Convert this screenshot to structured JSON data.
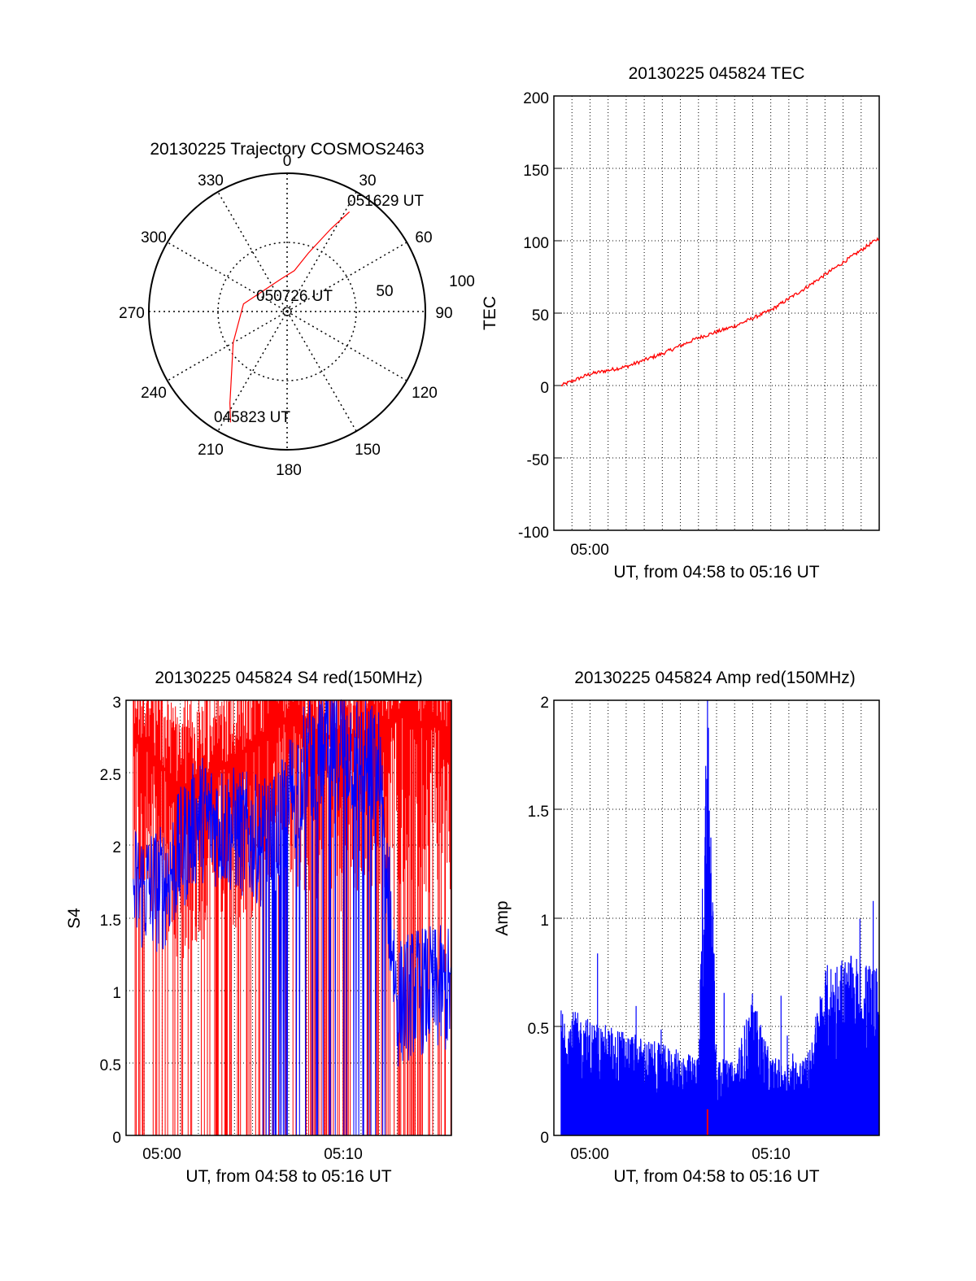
{
  "chart_data": [
    {
      "type": "polar",
      "title": "20130225 Trajectory COSMOS2463",
      "azimuth_labels": [
        "0",
        "30",
        "60",
        "90",
        "120",
        "150",
        "180",
        "210",
        "240",
        "270",
        "300",
        "330"
      ],
      "radial_labels": [
        "50",
        "100"
      ],
      "track": {
        "color": "#ff0000",
        "start_label": "045823 UT",
        "mid_label": "050726 UT",
        "end_label": "051629 UT",
        "points": [
          [
            207,
            90
          ],
          [
            212,
            78
          ],
          [
            222,
            60
          ],
          [
            240,
            45
          ],
          [
            280,
            32
          ],
          [
            350,
            24
          ],
          [
            10,
            30
          ],
          [
            20,
            45
          ],
          [
            28,
            68
          ],
          [
            32,
            85
          ]
        ]
      }
    },
    {
      "type": "line",
      "title": "20130225 045824 TEC",
      "ylabel": "TEC",
      "xlabel": "UT, from 04:58 to 05:16 UT",
      "ylim": [
        -100,
        200
      ],
      "yticks": [
        "200",
        "150",
        "100",
        "50",
        "0",
        "-50",
        "-100"
      ],
      "xticks": [
        "05:00"
      ],
      "grid": true,
      "series": [
        {
          "color": "#ff0000",
          "x": [
            "04:58:24",
            "05:00",
            "05:02",
            "05:04",
            "05:06",
            "05:08",
            "05:10",
            "05:12",
            "05:14",
            "05:16"
          ],
          "values": [
            0,
            8,
            13,
            22,
            33,
            41,
            52,
            68,
            85,
            102
          ]
        }
      ]
    },
    {
      "type": "line",
      "title": "20130225 045824 S4 red(150MHz)",
      "ylabel": "S4",
      "xlabel": "UT, from 04:58 to 05:16 UT",
      "ylim": [
        0,
        3
      ],
      "yticks": [
        "3",
        "2.5",
        "2",
        "1.5",
        "1",
        "0.5",
        "0"
      ],
      "xticks": [
        "05:00",
        "05:10"
      ],
      "grid": true,
      "series": [
        {
          "color": "#ff0000",
          "x": [
            "04:58:24",
            "05:01",
            "05:04",
            "05:07",
            "05:10",
            "05:13",
            "05:16"
          ],
          "values": [
            2.8,
            2.4,
            2.6,
            2.9,
            2.7,
            2.9,
            2.8
          ]
        },
        {
          "color": "#0000ff",
          "x": [
            "04:58:24",
            "05:00",
            "05:02",
            "05:04",
            "05:06",
            "05:08",
            "05:10",
            "05:12",
            "05:13",
            "05:14",
            "05:16"
          ],
          "values": [
            1.7,
            1.7,
            2.2,
            2.1,
            2.0,
            2.6,
            2.7,
            2.5,
            0.9,
            1.0,
            1.0
          ]
        }
      ]
    },
    {
      "type": "line",
      "title": "20130225 045824 Amp red(150MHz)",
      "ylabel": "Amp",
      "xlabel": "UT, from 04:58 to 05:16 UT",
      "ylim": [
        0,
        2
      ],
      "yticks": [
        "2",
        "1.5",
        "1",
        "0.5",
        "0"
      ],
      "xticks": [
        "05:00",
        "05:10"
      ],
      "grid": true,
      "series": [
        {
          "color": "#0000ff",
          "x": [
            "04:58:24",
            "05:00",
            "05:02",
            "05:04",
            "05:06",
            "05:06:30",
            "05:07",
            "05:08",
            "05:09",
            "05:10",
            "05:12",
            "05:13",
            "05:14",
            "05:16"
          ],
          "values": [
            0.5,
            0.45,
            0.4,
            0.35,
            0.3,
            1.88,
            0.3,
            0.28,
            0.55,
            0.3,
            0.3,
            0.65,
            0.7,
            0.65
          ]
        },
        {
          "color": "#ff0000",
          "x": [
            "05:06:30"
          ],
          "values": [
            0.12
          ]
        }
      ]
    }
  ]
}
